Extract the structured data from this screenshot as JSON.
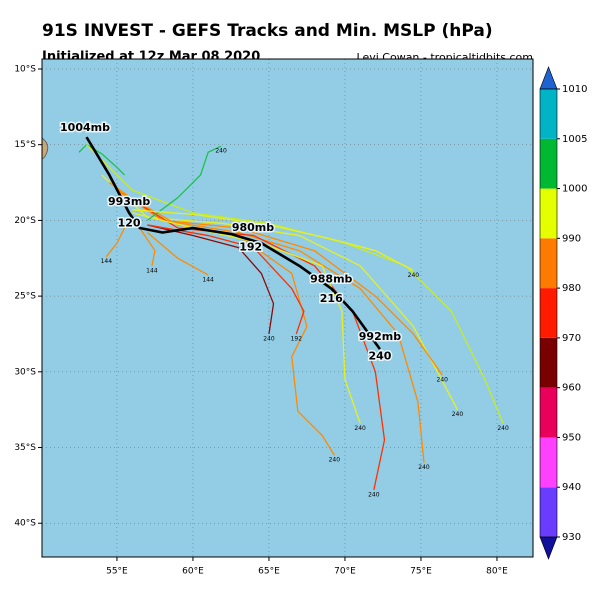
{
  "header": {
    "title": "91S INVEST - GEFS Tracks and Min. MSLP (hPa)",
    "subtitle": "Initialized at 12z Mar 08 2020",
    "credit": "Levi Cowan - tropicaltidbits.com"
  },
  "map": {
    "lon_range": [
      50.07,
      82.37
    ],
    "lat_range": [
      -9.34,
      -42.23
    ],
    "background": "#92cde5",
    "lon_ticks": [
      {
        "value": 55,
        "label": "55°E"
      },
      {
        "value": 60,
        "label": "60°E"
      },
      {
        "value": 65,
        "label": "65°E"
      },
      {
        "value": 70,
        "label": "70°E"
      },
      {
        "value": 75,
        "label": "75°E"
      },
      {
        "value": 80,
        "label": "80°E"
      }
    ],
    "lat_ticks": [
      {
        "value": -10,
        "label": "10°S"
      },
      {
        "value": -15,
        "label": "15°S"
      },
      {
        "value": -20,
        "label": "20°S"
      },
      {
        "value": -25,
        "label": "25°S"
      },
      {
        "value": -30,
        "label": "30°S"
      },
      {
        "value": -35,
        "label": "35°S"
      },
      {
        "value": -40,
        "label": "40°S"
      }
    ],
    "grid": true
  },
  "tracks": [
    {
      "color": "#20c050",
      "lon": [
        52.5,
        53,
        54,
        55,
        55.5
      ],
      "lat": [
        -15.5,
        -15,
        -15.6,
        -16.5,
        -17
      ],
      "label": null
    },
    {
      "color": "#c8ec20",
      "lon": [
        53,
        56,
        60,
        65,
        70,
        74,
        77,
        79.2,
        80.4
      ],
      "lat": [
        -15,
        -18,
        -19.5,
        -20.2,
        -21.5,
        -23,
        -26,
        -30.5,
        -33.4
      ],
      "label": "240"
    },
    {
      "color": "#e6f020",
      "lon": [
        54,
        57,
        62,
        67,
        71,
        74.5,
        77.4
      ],
      "lat": [
        -17,
        -19.8,
        -20.2,
        -21,
        -23,
        -27,
        -32.5
      ],
      "label": "240"
    },
    {
      "color": "#ff8a00",
      "lon": [
        55,
        58,
        63,
        68,
        72,
        74.5,
        76.4
      ],
      "lat": [
        -18,
        -20,
        -20.5,
        -22,
        -25,
        -27.5,
        -30.2
      ],
      "label": "240"
    },
    {
      "color": "#ff8a00",
      "lon": [
        54.5,
        58,
        63,
        67,
        71,
        73.5,
        74.8,
        75.2
      ],
      "lat": [
        -17.5,
        -20,
        -20.8,
        -22,
        -24.5,
        -27.5,
        -32,
        -36
      ],
      "label": "240"
    },
    {
      "color": "#ff3000",
      "lon": [
        55,
        59,
        64,
        68,
        70.5,
        72,
        72.6,
        71.9
      ],
      "lat": [
        -18,
        -20.5,
        -21,
        -23,
        -26,
        -30,
        -34.5,
        -37.8
      ],
      "label": "240"
    },
    {
      "color": "#ff8a00",
      "lon": [
        55,
        59,
        63,
        66.5,
        67.5,
        66.5,
        66.9,
        68.5,
        69.3
      ],
      "lat": [
        -18,
        -20.3,
        -21,
        -23.5,
        -27,
        -29,
        -32.6,
        -34.2,
        -35.5
      ],
      "label": "240"
    },
    {
      "color": "#e6f020",
      "lon": [
        56,
        60,
        64.5,
        68.5,
        69.8,
        70,
        71
      ],
      "lat": [
        -19.5,
        -20.5,
        -21.5,
        -23,
        -26,
        -30.5,
        -33.4
      ],
      "label": "240"
    },
    {
      "color": "#20c050",
      "lon": [
        57,
        59,
        60.5,
        61,
        61.85
      ],
      "lat": [
        -20,
        -18.5,
        -17,
        -15.5,
        -15.1
      ],
      "label": "240"
    },
    {
      "color": "#8b0a0a",
      "lon": [
        57,
        60,
        63,
        64.5,
        65.3,
        65
      ],
      "lat": [
        -20.3,
        -21,
        -21.8,
        -23.5,
        -25.5,
        -27.5
      ],
      "label": "240"
    },
    {
      "color": "#e6f020",
      "lon": [
        56,
        60,
        65,
        69,
        72,
        74.5
      ],
      "lat": [
        -19.3,
        -19.6,
        -20.3,
        -21.2,
        -22,
        -23.3
      ],
      "label": "240"
    },
    {
      "color": "#ff8a00",
      "lon": [
        55.5,
        55,
        54.3
      ],
      "lat": [
        -20.5,
        -21.5,
        -22.4
      ],
      "label": "144"
    },
    {
      "color": "#ff8a00",
      "lon": [
        56.5,
        57.5,
        57.3
      ],
      "lat": [
        -20.5,
        -22,
        -23.0
      ],
      "label": "144"
    },
    {
      "color": "#ff8a00",
      "lon": [
        57,
        59,
        61
      ],
      "lat": [
        -20.8,
        -22.5,
        -23.6
      ],
      "label": "144"
    },
    {
      "color": "#ff3000",
      "lon": [
        57,
        61,
        64,
        66.5,
        67.3,
        66.8
      ],
      "lat": [
        -20.3,
        -21,
        -21.8,
        -24.5,
        -26,
        -27.5
      ],
      "label": "192"
    }
  ],
  "mean_track": {
    "lon": [
      53,
      54.5,
      55.8,
      56.5,
      58,
      60,
      62.5,
      64.5,
      67,
      69.1,
      70.5,
      72.3
    ],
    "lat": [
      -14.5,
      -17,
      -19.5,
      -20.5,
      -20.8,
      -20.5,
      -20.9,
      -21.5,
      -23,
      -24.5,
      -26,
      -28.5
    ],
    "labels": [
      {
        "text": "1004mb",
        "lon": 52.9,
        "lat": -13.9
      },
      {
        "text": "993mb",
        "lon": 55.8,
        "lat": -18.8
      },
      {
        "text": "120",
        "lon": 55.8,
        "lat": -20.2
      },
      {
        "text": "980mb",
        "lon": 63.95,
        "lat": -20.5
      },
      {
        "text": "192",
        "lon": 63.8,
        "lat": -21.8
      },
      {
        "text": "988mb",
        "lon": 69.1,
        "lat": -23.9
      },
      {
        "text": "216",
        "lon": 69.1,
        "lat": -25.2
      },
      {
        "text": "992mb",
        "lon": 72.3,
        "lat": -27.7
      },
      {
        "text": "240",
        "lon": 72.3,
        "lat": -29.0
      }
    ]
  },
  "colorbar": {
    "levels": [
      930,
      940,
      950,
      960,
      970,
      980,
      990,
      1000,
      1005,
      1010
    ],
    "colors": [
      "#6a3cff",
      "#ff40ff",
      "#e8005a",
      "#7a0000",
      "#ff1a00",
      "#ff7a00",
      "#e4ff00",
      "#00b832",
      "#00b4c6"
    ],
    "under_color": "#10109a",
    "over_color": "#1f63d0",
    "ticks": [
      930,
      940,
      950,
      960,
      970,
      980,
      990,
      1000,
      1005,
      1010
    ]
  }
}
